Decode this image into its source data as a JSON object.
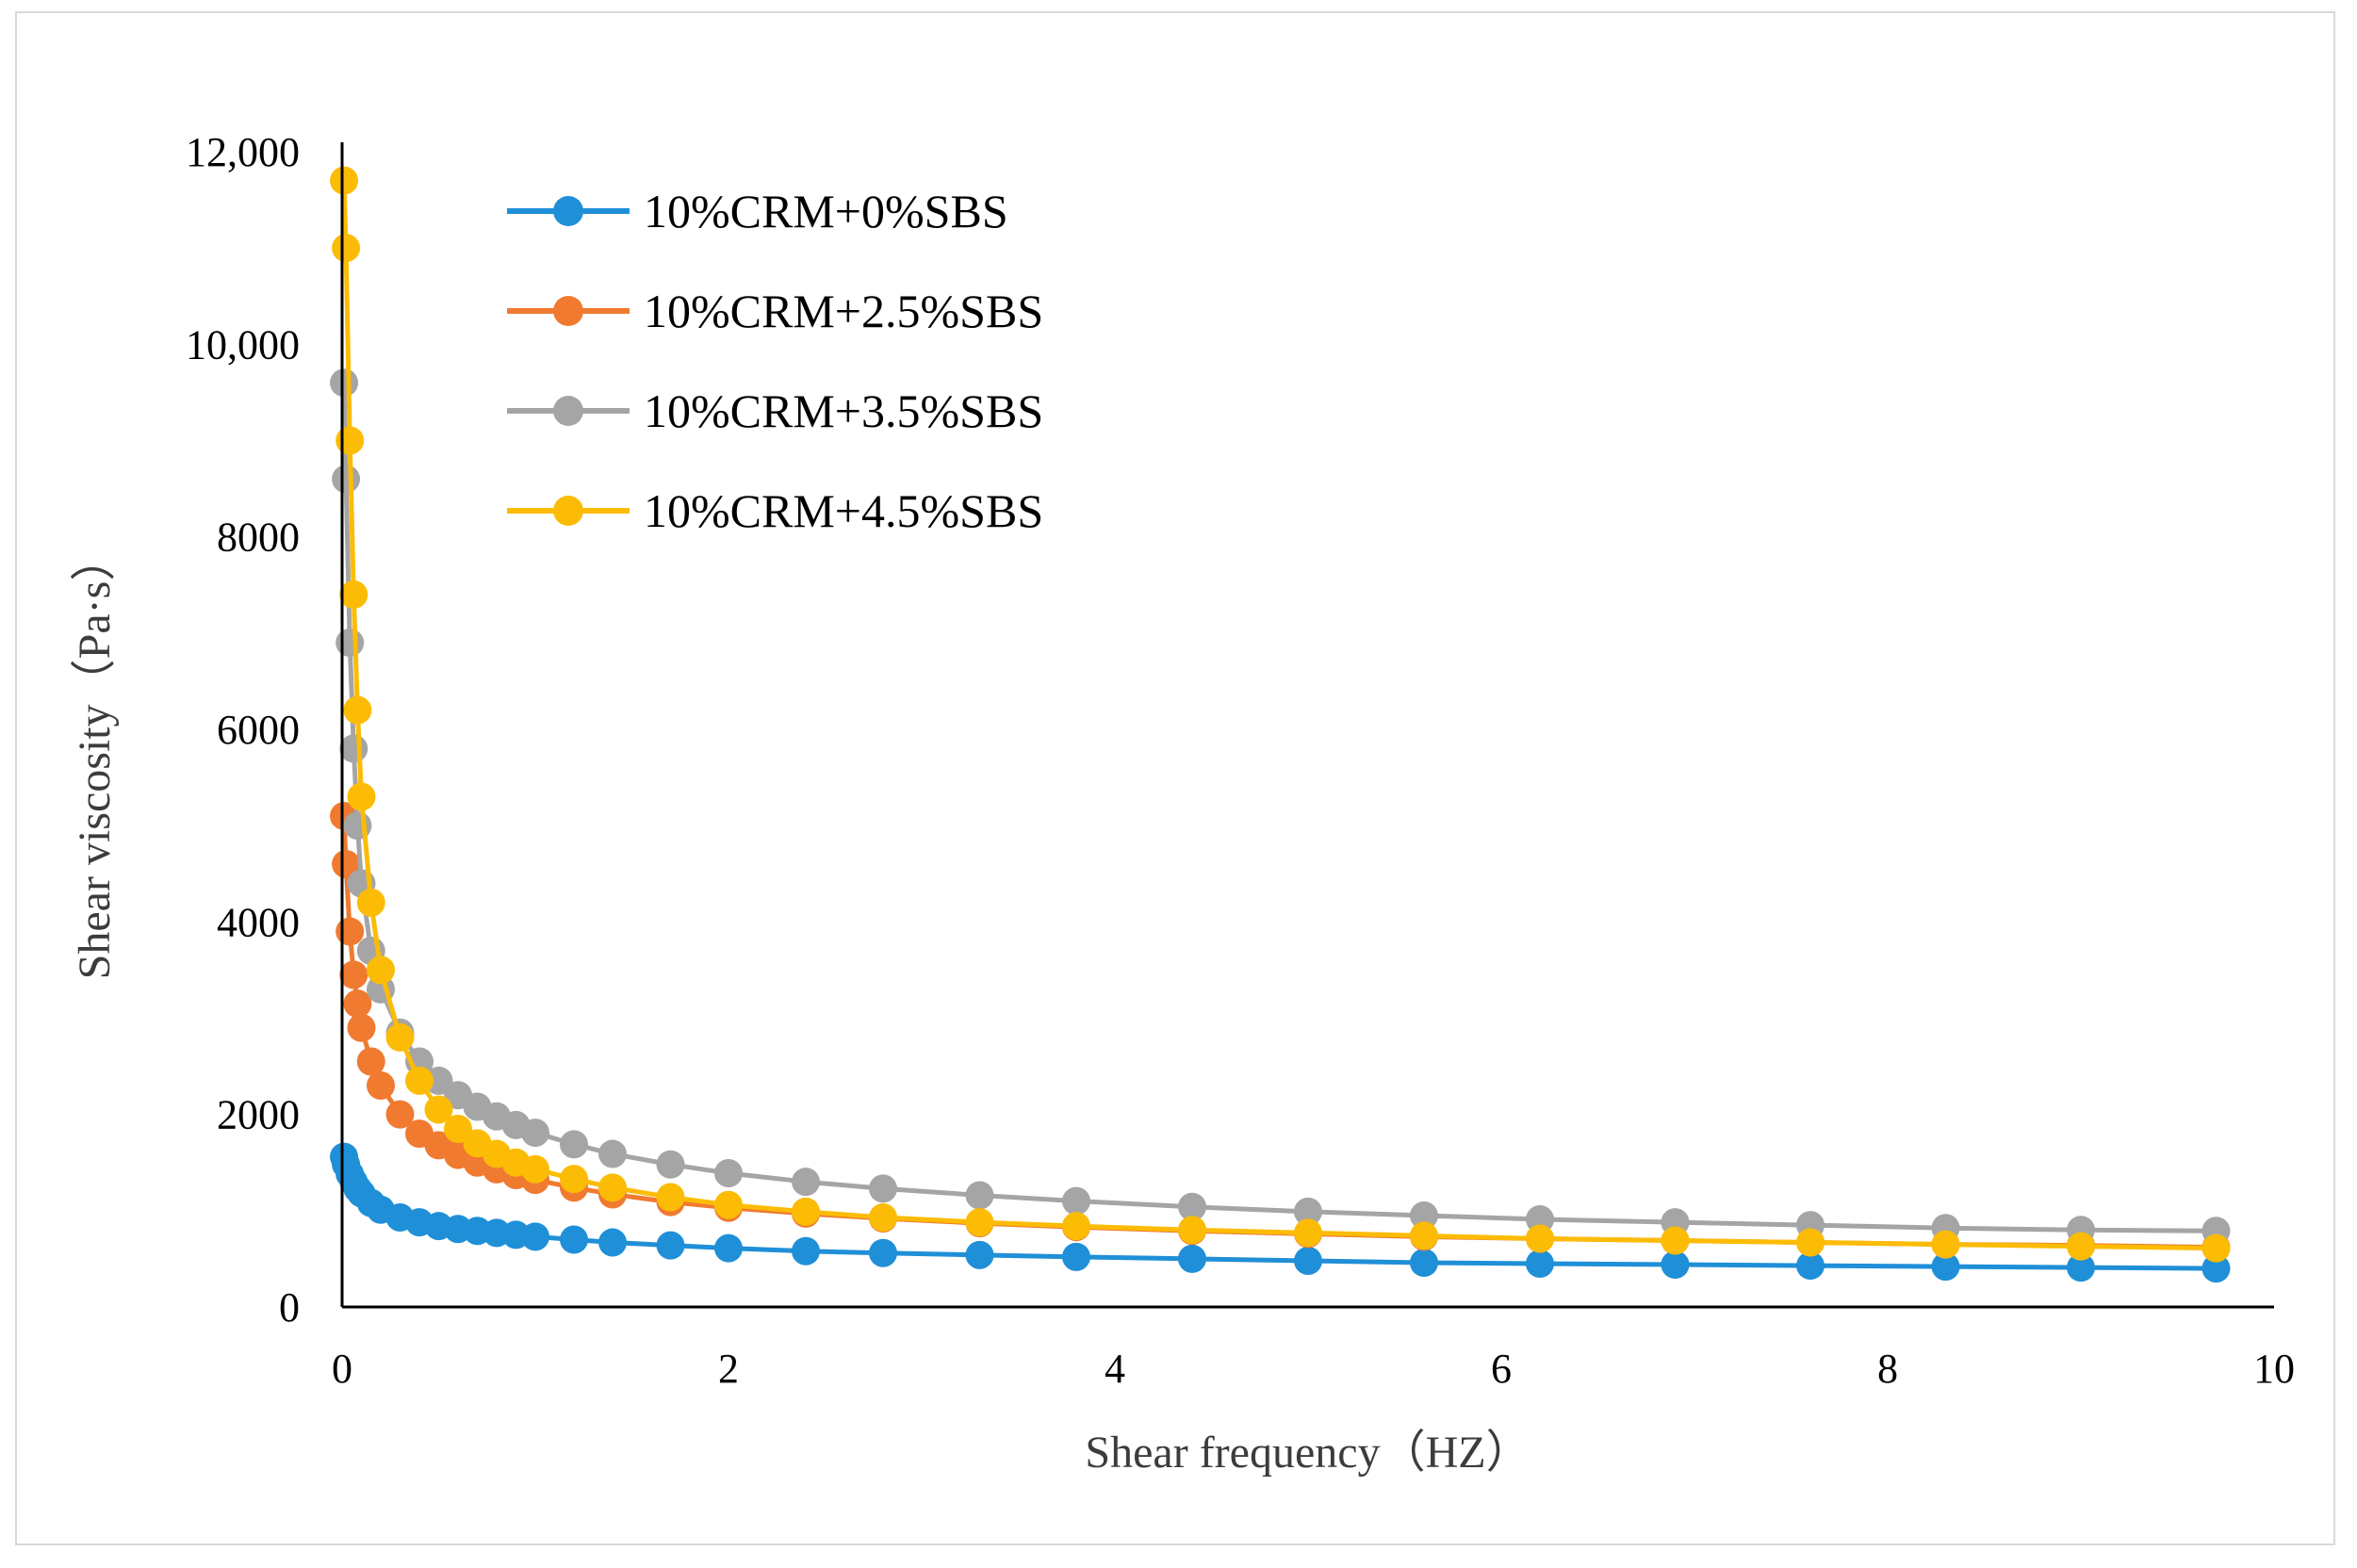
{
  "chart_data": {
    "type": "line",
    "title": "",
    "xlabel": "Shear frequency（HZ）",
    "ylabel": "Shear viscosity（Pa·s）",
    "xlim": [
      0,
      10
    ],
    "ylim": [
      0,
      12000
    ],
    "x_ticks": [
      {
        "value": 0,
        "label": "0"
      },
      {
        "value": 2,
        "label": "2"
      },
      {
        "value": 4,
        "label": "4"
      },
      {
        "value": 6,
        "label": "6"
      },
      {
        "value": 8,
        "label": "8"
      },
      {
        "value": 10,
        "label": "10"
      }
    ],
    "y_ticks": [
      {
        "value": 0,
        "label": "0"
      },
      {
        "value": 2000,
        "label": "2000"
      },
      {
        "value": 4000,
        "label": "4000"
      },
      {
        "value": 6000,
        "label": "6000"
      },
      {
        "value": 8000,
        "label": "8000"
      },
      {
        "value": 10000,
        "label": "10,000"
      },
      {
        "value": 12000,
        "label": "12,000"
      }
    ],
    "grid": false,
    "legend_position": "top-left",
    "x": [
      0.01,
      0.02,
      0.04,
      0.06,
      0.08,
      0.1,
      0.15,
      0.2,
      0.3,
      0.4,
      0.5,
      0.6,
      0.7,
      0.8,
      0.9,
      1.0,
      1.2,
      1.4,
      1.7,
      2.0,
      2.4,
      2.8,
      3.3,
      3.8,
      4.4,
      5.0,
      5.6,
      6.2,
      6.9,
      7.6,
      8.3,
      9.0,
      9.7
    ],
    "series": [
      {
        "name": "10%CRM+0%SBS",
        "color": "#1f8fd8",
        "values": [
          1560,
          1480,
          1380,
          1300,
          1230,
          1180,
          1080,
          1010,
          930,
          880,
          840,
          810,
          790,
          770,
          750,
          730,
          700,
          670,
          640,
          610,
          580,
          560,
          540,
          520,
          500,
          480,
          460,
          450,
          440,
          430,
          420,
          410,
          400
        ]
      },
      {
        "name": "10%CRM+2.5%SBS",
        "color": "#f07a30",
        "values": [
          5100,
          4600,
          3900,
          3450,
          3150,
          2900,
          2550,
          2300,
          2000,
          1800,
          1680,
          1580,
          1500,
          1430,
          1370,
          1320,
          1240,
          1170,
          1090,
          1030,
          970,
          920,
          870,
          830,
          790,
          760,
          730,
          710,
          690,
          670,
          650,
          640,
          620
        ]
      },
      {
        "name": "10%CRM+3.5%SBS",
        "color": "#a5a5a5",
        "values": [
          9600,
          8600,
          6900,
          5800,
          5000,
          4400,
          3700,
          3300,
          2850,
          2550,
          2350,
          2200,
          2080,
          1980,
          1890,
          1810,
          1690,
          1590,
          1480,
          1390,
          1300,
          1230,
          1160,
          1100,
          1040,
          990,
          950,
          910,
          880,
          850,
          820,
          800,
          790
        ]
      },
      {
        "name": "10%CRM+4.5%SBS",
        "color": "#fcbc05",
        "values": [
          11700,
          11000,
          9000,
          7400,
          6200,
          5300,
          4200,
          3500,
          2800,
          2350,
          2050,
          1850,
          1700,
          1590,
          1500,
          1430,
          1330,
          1240,
          1140,
          1060,
          990,
          930,
          880,
          840,
          800,
          770,
          740,
          710,
          690,
          670,
          650,
          630,
          610
        ]
      }
    ]
  }
}
